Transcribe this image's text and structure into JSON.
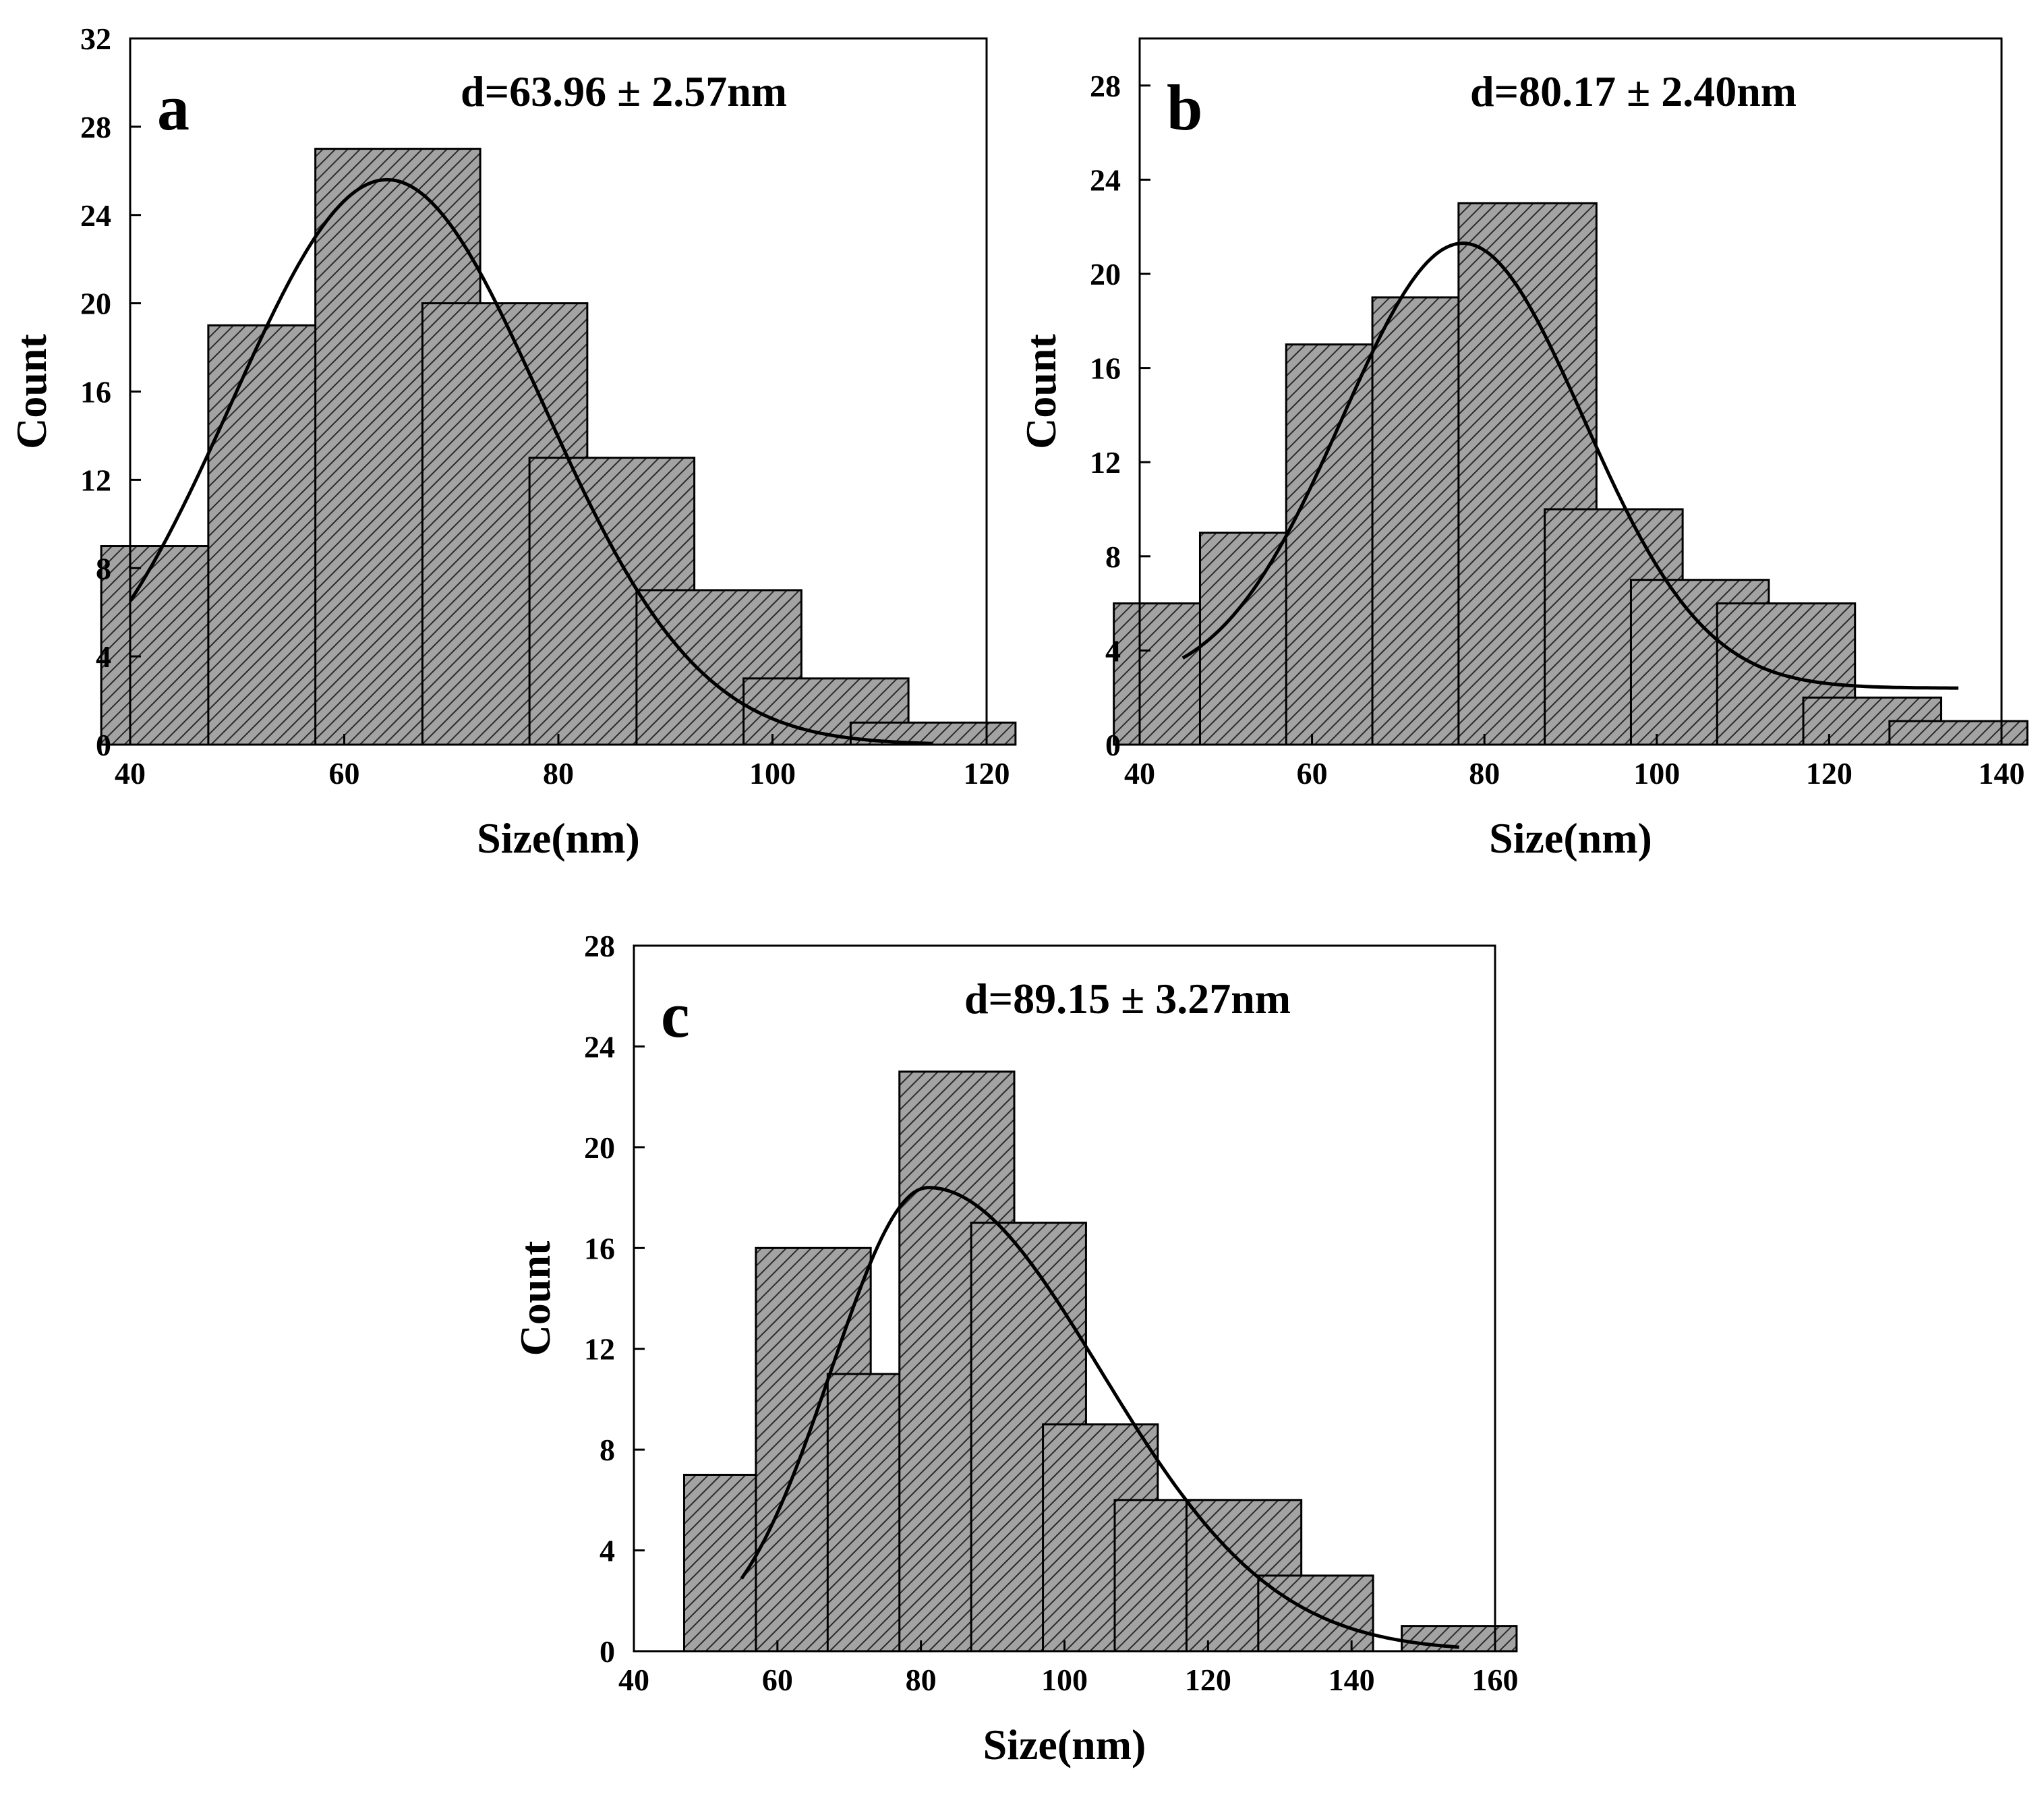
{
  "chart_data": [
    {
      "type": "bar",
      "panel_label": "a",
      "annotation": "d=63.96 ± 2.57nm",
      "xlabel": "Size(nm)",
      "ylabel": "Count",
      "xlim": [
        40,
        120
      ],
      "ylim": [
        0,
        32
      ],
      "xticks": [
        40,
        60,
        80,
        100,
        120
      ],
      "yticks": [
        0,
        4,
        8,
        12,
        16,
        20,
        24,
        28,
        32
      ],
      "bin_width": 15.4,
      "bin_centers": [
        45,
        55,
        65,
        75,
        85,
        95,
        105,
        115
      ],
      "values": [
        9,
        19,
        27,
        20,
        13,
        7,
        3,
        1
      ],
      "fit": {
        "type": "gaussian",
        "peak_x": 64,
        "peak_y": 25.6,
        "sigma": 14.5,
        "offset": 0,
        "x_range": [
          40,
          115
        ]
      }
    },
    {
      "type": "bar",
      "panel_label": "b",
      "annotation": "d=80.17 ± 2.40nm",
      "xlabel": "Size(nm)",
      "ylabel": "Count",
      "xlim": [
        40,
        140
      ],
      "ylim": [
        0,
        30
      ],
      "xticks": [
        40,
        60,
        80,
        100,
        120,
        140
      ],
      "yticks": [
        0,
        4,
        8,
        12,
        16,
        20,
        24,
        28
      ],
      "bin_width": 16,
      "bin_centers": [
        45,
        55,
        65,
        75,
        85,
        95,
        105,
        115,
        125,
        135
      ],
      "values": [
        6,
        9,
        17,
        19,
        23,
        10,
        7,
        6,
        2,
        1
      ],
      "fit": {
        "type": "gaussian",
        "peak_x": 77.5,
        "peak_y": 21.3,
        "sigma": 14,
        "offset": 2.4,
        "x_range": [
          45,
          135
        ]
      }
    },
    {
      "type": "bar",
      "panel_label": "c",
      "annotation": "d=89.15 ± 3.27nm",
      "xlabel": "Size(nm)",
      "ylabel": "Count",
      "xlim": [
        40,
        160
      ],
      "ylim": [
        0,
        28
      ],
      "xticks": [
        40,
        60,
        80,
        100,
        120,
        140,
        160
      ],
      "yticks": [
        0,
        4,
        8,
        12,
        16,
        20,
        24,
        28
      ],
      "bin_width": 16,
      "bin_centers": [
        55,
        65,
        75,
        85,
        95,
        105,
        115,
        125,
        135,
        155
      ],
      "values": [
        7,
        16,
        11,
        23,
        17,
        9,
        6,
        6,
        3,
        1
      ],
      "fit": {
        "type": "skewed-gaussian",
        "peak_x": 81,
        "peak_y": 18.4,
        "sigma_left": 13.5,
        "sigma_right": 24,
        "offset": 0,
        "x_range": [
          55,
          155
        ]
      }
    }
  ]
}
